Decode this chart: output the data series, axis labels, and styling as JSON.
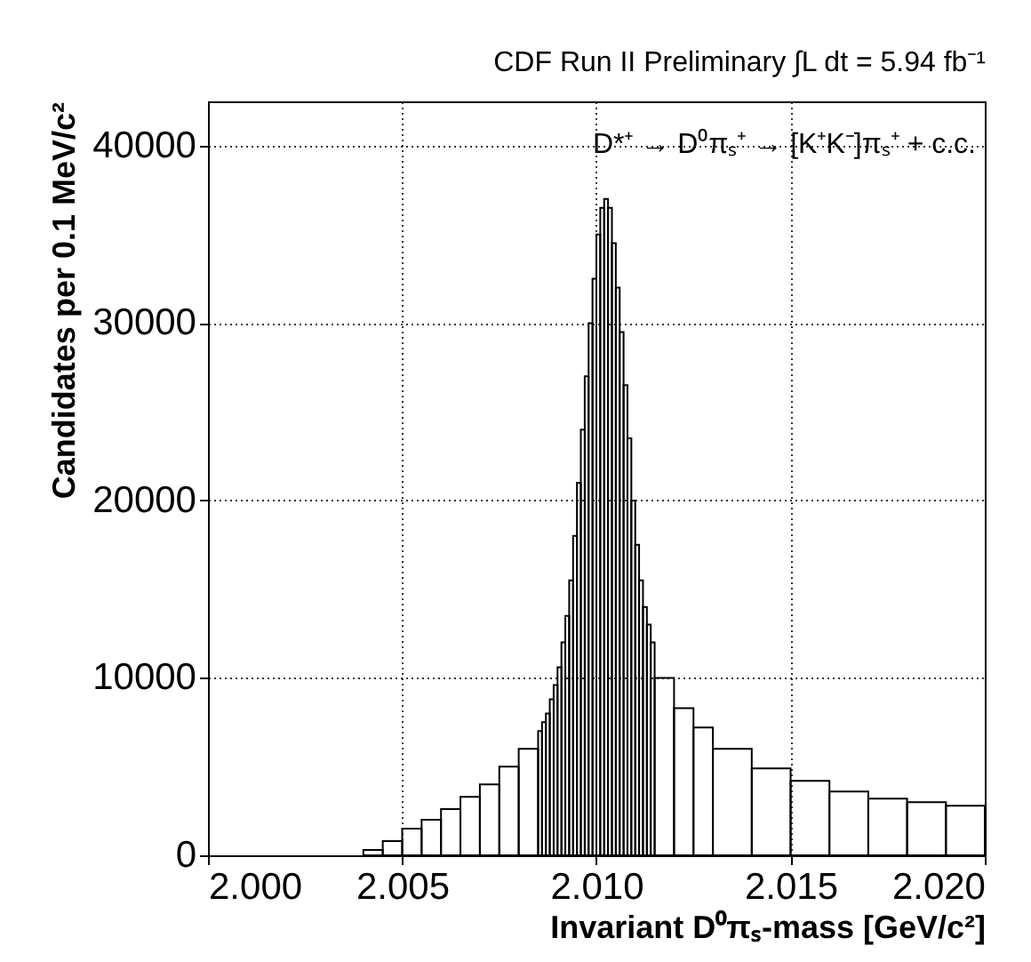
{
  "chart_data": {
    "type": "histogram",
    "title": "CDF Run II Preliminary ∫L dt = 5.94 fb⁻¹",
    "xlabel": "Invariant D⁰πₛ-mass [GeV/c²]",
    "ylabel": "Candidates per 0.1 MeV/c²",
    "annotations": [
      "D*⁺ → D⁰πₛ⁺ → [K⁺K⁻]πₛ⁺ + c.c."
    ],
    "color": "#000000",
    "bins": [
      2.004,
      2.0045,
      2.005,
      2.0055,
      2.006,
      2.0065,
      2.007,
      2.0075,
      2.008,
      2.0085,
      2.0086,
      2.0087,
      2.0088,
      2.0089,
      2.009,
      2.0091,
      2.0092,
      2.0093,
      2.0094,
      2.0095,
      2.0096,
      2.0097,
      2.0098,
      2.0099,
      2.01,
      2.0101,
      2.0102,
      2.0103,
      2.0104,
      2.0105,
      2.0106,
      2.0107,
      2.0108,
      2.0109,
      2.011,
      2.0111,
      2.0112,
      2.0113,
      2.0114,
      2.0115,
      2.012,
      2.0125,
      2.013,
      2.014,
      2.015,
      2.016,
      2.017,
      2.018,
      2.019,
      2.02
    ],
    "values": [
      300,
      800,
      1500,
      2000,
      2600,
      3300,
      4000,
      5000,
      6000,
      7000,
      7500,
      8000,
      8800,
      9600,
      10600,
      12000,
      13500,
      15500,
      18000,
      21000,
      24000,
      27000,
      30000,
      32500,
      35000,
      36500,
      37000,
      36500,
      34500,
      32000,
      29500,
      26500,
      23500,
      20000,
      17500,
      15500,
      14000,
      13000,
      12000,
      10000,
      8300,
      7200,
      6000,
      4900,
      4200,
      3600,
      3200,
      3000,
      2800
    ],
    "xlim": [
      2.0,
      2.02
    ],
    "xticks": [
      {
        "value": 2.0,
        "label": "2.000"
      },
      {
        "value": 2.005,
        "label": "2.005"
      },
      {
        "value": 2.01,
        "label": "2.010"
      },
      {
        "value": 2.015,
        "label": "2.015"
      },
      {
        "value": 2.02,
        "label": "2.020"
      }
    ],
    "ylim": [
      0,
      42500
    ],
    "yticks": [
      0,
      {
        "value": 10000,
        "label": "10000"
      },
      {
        "value": 20000,
        "label": "20000"
      },
      {
        "value": 30000,
        "label": "30000"
      },
      {
        "value": 40000,
        "label": "40000"
      }
    ],
    "grid": true
  }
}
